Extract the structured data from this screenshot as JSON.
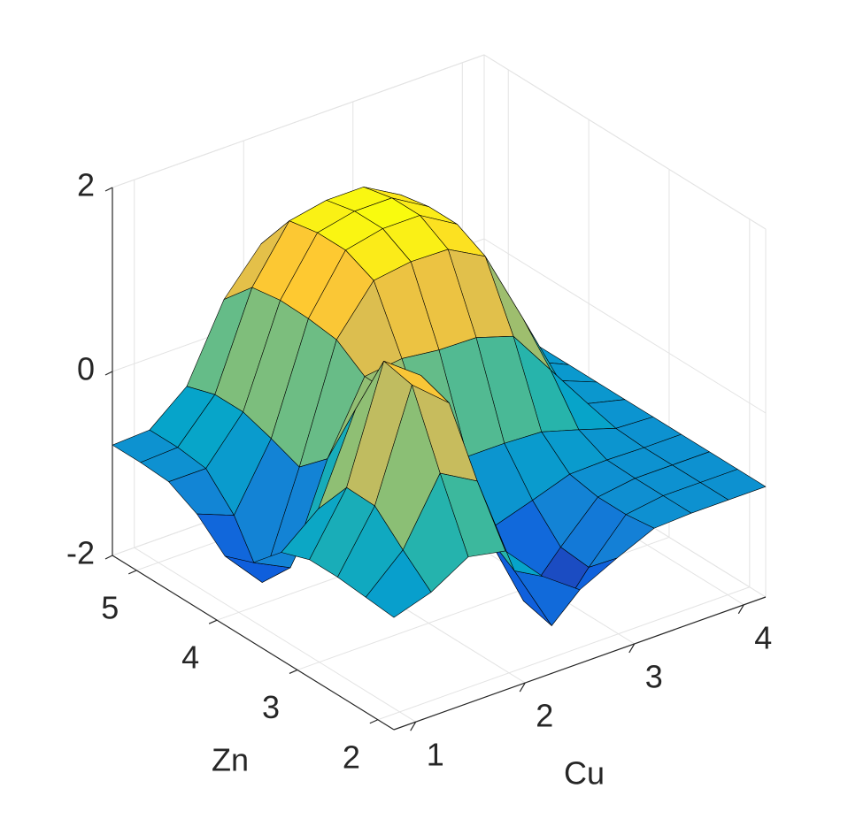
{
  "chart_data": {
    "type": "surface",
    "xlabel": "Cu",
    "ylabel": "Zn",
    "x": [
      0.8,
      1.14,
      1.48,
      1.82,
      2.16,
      2.5,
      2.84,
      3.18,
      3.52,
      3.86,
      4.2
    ],
    "y": [
      1.8,
      2.15,
      2.5,
      2.85,
      3.2,
      3.55,
      3.9,
      4.25,
      4.6,
      4.95,
      5.3
    ],
    "z": [
      [
        -0.78,
        -0.65,
        -0.41,
        -0.49,
        -0.91,
        -1.2,
        -1.0,
        -0.82,
        -0.8,
        -0.8,
        -0.8
      ],
      [
        -0.75,
        -0.38,
        0.31,
        0.08,
        -1.04,
        -1.78,
        -1.29,
        -0.86,
        -0.8,
        -0.8,
        -0.8
      ],
      [
        -0.72,
        -0.09,
        1.08,
        0.74,
        -0.83,
        -1.7,
        -1.26,
        -0.86,
        -0.8,
        -0.8,
        -0.8
      ],
      [
        -0.72,
        -0.08,
        1.15,
        0.85,
        -0.5,
        -1.07,
        -0.94,
        -0.8,
        -0.79,
        -0.8,
        -0.8
      ],
      [
        -0.83,
        -0.5,
        0.44,
        0.45,
        -0.25,
        -0.51,
        -0.51,
        -0.53,
        -0.65,
        -0.78,
        -0.8
      ],
      [
        -1.13,
        -1.33,
        -0.29,
        0.46,
        0.51,
        0.46,
        0.45,
        0.32,
        -0.19,
        -0.7,
        -0.8
      ],
      [
        -1.25,
        -1.68,
        -0.57,
        0.67,
        1.17,
        1.23,
        1.22,
        1.0,
        0.19,
        -0.64,
        -0.8
      ],
      [
        -0.98,
        -1.14,
        -0.45,
        0.71,
        1.31,
        1.4,
        1.4,
        1.16,
        0.28,
        -0.62,
        -0.8
      ],
      [
        -0.82,
        -0.82,
        -0.35,
        0.72,
        1.31,
        1.4,
        1.4,
        1.16,
        0.28,
        -0.62,
        -0.8
      ],
      [
        -0.8,
        -0.78,
        -0.35,
        0.67,
        1.25,
        1.33,
        1.33,
        1.1,
        0.25,
        -0.63,
        -0.8
      ],
      [
        -0.8,
        -0.78,
        -0.45,
        0.35,
        0.81,
        0.87,
        0.87,
        0.69,
        0.02,
        -0.67,
        -0.8
      ]
    ],
    "xlim": [
      0.8,
      4.2
    ],
    "ylim": [
      1.8,
      5.3
    ],
    "zlim": [
      -2,
      2
    ],
    "xticks": [
      1,
      2,
      3,
      4
    ],
    "yticks": [
      2,
      3,
      4,
      5
    ],
    "zticks": [
      -2,
      0,
      2
    ],
    "grid": true,
    "colormap": "parula",
    "edgecolor": "#000000"
  }
}
